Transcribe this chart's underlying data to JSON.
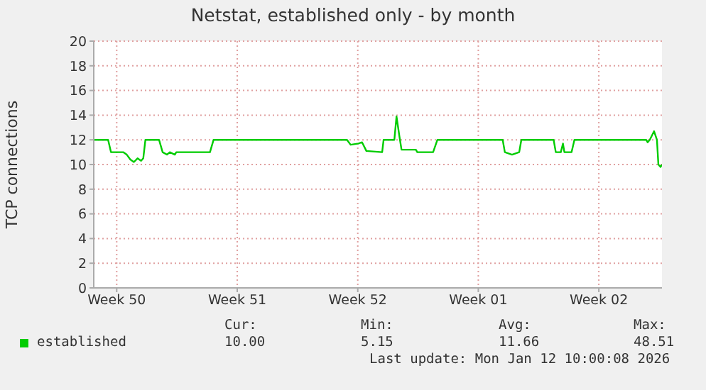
{
  "chart_data": {
    "type": "line",
    "title": "Netstat, established only - by month",
    "ylabel": "TCP connections",
    "xlim": [
      "2025-12-10T10:00",
      "2026-01-12T10:00"
    ],
    "xticks": [
      {
        "value": "2025-12-11T18:00",
        "label": "Week 50"
      },
      {
        "value": "2025-12-18T18:00",
        "label": "Week 51"
      },
      {
        "value": "2025-12-25T18:00",
        "label": "Week 52"
      },
      {
        "value": "2026-01-01T18:00",
        "label": "Week 01"
      },
      {
        "value": "2026-01-08T18:00",
        "label": "Week 02"
      }
    ],
    "ylim": [
      0,
      20
    ],
    "yticks": [
      0,
      2,
      4,
      6,
      8,
      10,
      12,
      14,
      16,
      18,
      20
    ],
    "grid": true,
    "line_style": "solid",
    "legend": "bottom",
    "series": [
      {
        "name": "established",
        "color": "#00cc00",
        "x": [
          "2025-12-10T11:00",
          "2025-12-11T06:00",
          "2025-12-11T10:00",
          "2025-12-12T03:00",
          "2025-12-12T08:00",
          "2025-12-12T13:00",
          "2025-12-12T18:00",
          "2025-12-12T23:00",
          "2025-12-13T04:00",
          "2025-12-13T07:00",
          "2025-12-13T10:00",
          "2025-12-14T05:00",
          "2025-12-14T10:00",
          "2025-12-14T16:00",
          "2025-12-14T20:00",
          "2025-12-15T03:00",
          "2025-12-15T05:00",
          "2025-12-17T04:00",
          "2025-12-17T09:00",
          "2025-12-25T03:00",
          "2025-12-25T08:00",
          "2025-12-25T19:00",
          "2025-12-26T00:00",
          "2025-12-26T06:00",
          "2025-12-27T04:00",
          "2025-12-27T06:00",
          "2025-12-27T21:00",
          "2025-12-28T00:00",
          "2025-12-28T04:00",
          "2025-12-28T07:00",
          "2025-12-29T03:00",
          "2025-12-29T05:00",
          "2025-12-30T03:00",
          "2025-12-30T09:00",
          "2026-01-03T04:00",
          "2026-01-03T07:00",
          "2026-01-03T17:00",
          "2026-01-04T03:00",
          "2026-01-04T06:00",
          "2026-01-06T03:00",
          "2026-01-06T06:00",
          "2026-01-06T13:00",
          "2026-01-06T16:00",
          "2026-01-06T18:00",
          "2026-01-07T04:00",
          "2026-01-07T08:00",
          "2026-01-11T12:00",
          "2026-01-11T14:00",
          "2026-01-11T17:00",
          "2026-01-11T23:00",
          "2026-01-12T03:00",
          "2026-01-12T05:00",
          "2026-01-12T08:00",
          "2026-01-12T10:00"
        ],
        "values": [
          12,
          12,
          11,
          11,
          10.8,
          10.4,
          10.2,
          10.5,
          10.3,
          10.5,
          12,
          12,
          11,
          10.8,
          11,
          10.8,
          11,
          11,
          12,
          12,
          11.6,
          11.7,
          11.8,
          11.1,
          11,
          12,
          12,
          13.9,
          12.3,
          11.2,
          11.2,
          11,
          11,
          12,
          12,
          11,
          10.8,
          11,
          12,
          12,
          11,
          11,
          11.7,
          11,
          11,
          12,
          12,
          11.8,
          12,
          12.7,
          12,
          10,
          9.8,
          10
        ]
      }
    ],
    "annotations": [
      "Cur:",
      "10.00",
      "Min:",
      "5.15",
      "Avg:",
      "11.66",
      "Max:",
      "48.51",
      "Last update: Mon Jan 12 10:00:08 2026"
    ]
  }
}
